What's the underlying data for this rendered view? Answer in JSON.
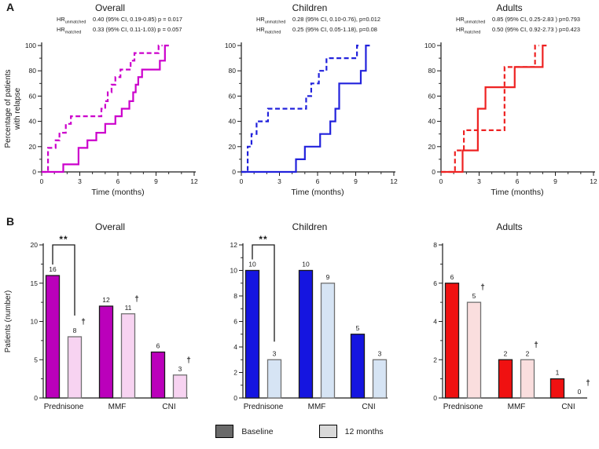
{
  "figure": {
    "panel_a_label": "A",
    "panel_b_label": "B"
  },
  "legend": {
    "items": [
      {
        "label": "Baseline",
        "swatch_color": "#6a6a6a"
      },
      {
        "label": "12 months",
        "swatch_color": "#d9d9d9"
      }
    ]
  },
  "chart_data": [
    {
      "id": "km-overall",
      "panel": "A",
      "type": "line",
      "subtype": "kaplan-meier-step",
      "title": "Overall",
      "curve_color": "#cc00cc",
      "hr_annotations": [
        {
          "prefix": "HR",
          "subscript": "unmatched",
          "value": "0.40 (95% CI, 0.19-0.85) p = 0.017"
        },
        {
          "prefix": "HR",
          "subscript": "matched",
          "value": "0.33 (95% CI, 0.11-1.03) p = 0.057"
        }
      ],
      "xlabel": "Time (months)",
      "ylabel": [
        "Percentage of patients",
        "with relapse"
      ],
      "xlim": [
        0,
        12
      ],
      "ylim": [
        0,
        100
      ],
      "xticks": [
        0,
        3,
        6,
        9,
        12
      ],
      "yticks": [
        0,
        20,
        40,
        60,
        80,
        100
      ],
      "xminor": 1,
      "yminor": 10,
      "series": [
        {
          "name": "unmatched",
          "line": "dashed",
          "steps": [
            [
              0,
              0
            ],
            [
              0.5,
              19
            ],
            [
              1.1,
              25
            ],
            [
              1.4,
              31
            ],
            [
              1.9,
              38
            ],
            [
              2.3,
              44
            ],
            [
              4.7,
              50
            ],
            [
              5.0,
              56
            ],
            [
              5.2,
              63
            ],
            [
              5.5,
              69
            ],
            [
              5.8,
              75
            ],
            [
              6.2,
              81
            ],
            [
              7.0,
              88
            ],
            [
              7.3,
              94
            ],
            [
              9.2,
              100
            ]
          ]
        },
        {
          "name": "matched",
          "line": "solid",
          "steps": [
            [
              0,
              0
            ],
            [
              1.7,
              6
            ],
            [
              2.9,
              19
            ],
            [
              3.6,
              25
            ],
            [
              4.3,
              31
            ],
            [
              5.0,
              38
            ],
            [
              5.8,
              44
            ],
            [
              6.3,
              50
            ],
            [
              6.9,
              56
            ],
            [
              7.2,
              63
            ],
            [
              7.4,
              69
            ],
            [
              7.6,
              75
            ],
            [
              7.9,
              81
            ],
            [
              9.3,
              88
            ],
            [
              9.7,
              100
            ]
          ]
        }
      ]
    },
    {
      "id": "km-children",
      "panel": "A",
      "type": "line",
      "subtype": "kaplan-meier-step",
      "title": "Children",
      "curve_color": "#2222dc",
      "hr_annotations": [
        {
          "prefix": "HR",
          "subscript": "unmatched",
          "value": "0.28 (95% CI, 0.10-0.76), p=0.012"
        },
        {
          "prefix": "HR",
          "subscript": "matched",
          "value": "0.25 (95% CI, 0.05-1.18), p=0.08"
        }
      ],
      "xlabel": "Time (months)",
      "ylabel": null,
      "xlim": [
        0,
        12
      ],
      "ylim": [
        0,
        100
      ],
      "xticks": [
        0,
        3,
        6,
        9,
        12
      ],
      "yticks": [
        0,
        20,
        40,
        60,
        80,
        100
      ],
      "xminor": 1,
      "yminor": 10,
      "series": [
        {
          "name": "unmatched",
          "line": "dashed",
          "steps": [
            [
              0,
              0
            ],
            [
              0.5,
              20
            ],
            [
              0.8,
              30
            ],
            [
              1.2,
              40
            ],
            [
              2.1,
              50
            ],
            [
              5.1,
              60
            ],
            [
              5.5,
              70
            ],
            [
              6.1,
              80
            ],
            [
              6.7,
              90
            ],
            [
              9.1,
              100
            ]
          ]
        },
        {
          "name": "matched",
          "line": "solid",
          "steps": [
            [
              0,
              0
            ],
            [
              4.3,
              10
            ],
            [
              5.0,
              20
            ],
            [
              6.2,
              30
            ],
            [
              7.0,
              40
            ],
            [
              7.4,
              50
            ],
            [
              7.7,
              70
            ],
            [
              9.4,
              80
            ],
            [
              9.8,
              100
            ]
          ]
        }
      ]
    },
    {
      "id": "km-adults",
      "panel": "A",
      "type": "line",
      "subtype": "kaplan-meier-step",
      "title": "Adults",
      "curve_color": "#ee2222",
      "hr_annotations": [
        {
          "prefix": "HR",
          "subscript": "unmatched",
          "value": "0.85 (95% CI, 0.25-2.83 ) p=0.793"
        },
        {
          "prefix": "HR",
          "subscript": "matched",
          "value": "0.50 (95% CI, 0.92-2.73 ) p=0.423"
        }
      ],
      "xlabel": "Time (months)",
      "ylabel": null,
      "xlim": [
        0,
        12
      ],
      "ylim": [
        0,
        100
      ],
      "xticks": [
        0,
        3,
        6,
        9,
        12
      ],
      "yticks": [
        0,
        20,
        40,
        60,
        80,
        100
      ],
      "xminor": 1,
      "yminor": 10,
      "series": [
        {
          "name": "unmatched",
          "line": "dashed",
          "steps": [
            [
              0,
              0
            ],
            [
              1.1,
              17
            ],
            [
              1.8,
              33
            ],
            [
              5.0,
              83
            ],
            [
              7.4,
              100
            ]
          ]
        },
        {
          "name": "matched",
          "line": "solid",
          "steps": [
            [
              0,
              0
            ],
            [
              1.7,
              17
            ],
            [
              2.9,
              50
            ],
            [
              3.5,
              67
            ],
            [
              5.8,
              83
            ],
            [
              8.0,
              100
            ]
          ]
        }
      ]
    },
    {
      "id": "bar-overall",
      "panel": "B",
      "type": "bar",
      "title": "Overall",
      "ylabel": "Patients (number)",
      "categories": [
        "Prednisone",
        "MMF",
        "CNI"
      ],
      "ylim": [
        0,
        20
      ],
      "yticks": [
        0,
        5,
        10,
        15,
        20
      ],
      "yminor": 2.5,
      "series": [
        {
          "name": "Baseline",
          "color": "#bb00bb",
          "border": "#1a1a1a",
          "values": [
            16,
            12,
            6
          ]
        },
        {
          "name": "12 months",
          "color": "#f7d3f1",
          "border": "#707070",
          "values": [
            8,
            11,
            3
          ]
        }
      ],
      "daggers": [
        [
          false,
          false,
          false
        ],
        [
          true,
          true,
          true
        ]
      ],
      "dagger_symbol": "†",
      "significance": {
        "category": "Prednisone",
        "label": "**"
      }
    },
    {
      "id": "bar-children",
      "panel": "B",
      "type": "bar",
      "title": "Children",
      "ylabel": null,
      "categories": [
        "Prednisone",
        "MMF",
        "CNI"
      ],
      "ylim": [
        0,
        12
      ],
      "yticks": [
        0,
        2,
        4,
        6,
        8,
        10,
        12
      ],
      "yminor": 1,
      "series": [
        {
          "name": "Baseline",
          "color": "#1515e0",
          "border": "#1a1a1a",
          "values": [
            10,
            10,
            5
          ]
        },
        {
          "name": "12 months",
          "color": "#d6e4f4",
          "border": "#707070",
          "values": [
            3,
            9,
            3
          ]
        }
      ],
      "daggers": [
        [
          false,
          false,
          false
        ],
        [
          false,
          false,
          false
        ]
      ],
      "dagger_symbol": "†",
      "significance": {
        "category": "Prednisone",
        "label": "**"
      }
    },
    {
      "id": "bar-adults",
      "panel": "B",
      "type": "bar",
      "title": "Adults",
      "ylabel": null,
      "categories": [
        "Prednisone",
        "MMF",
        "CNI"
      ],
      "ylim": [
        0,
        8
      ],
      "yticks": [
        0,
        2,
        4,
        6,
        8
      ],
      "yminor": 1,
      "series": [
        {
          "name": "Baseline",
          "color": "#f01111",
          "border": "#1a1a1a",
          "values": [
            6,
            2,
            1
          ]
        },
        {
          "name": "12 months",
          "color": "#fadede",
          "border": "#707070",
          "values": [
            5,
            2,
            0
          ]
        }
      ],
      "daggers": [
        [
          false,
          false,
          false
        ],
        [
          true,
          true,
          true
        ]
      ],
      "dagger_symbol": "†",
      "significance": null
    }
  ]
}
